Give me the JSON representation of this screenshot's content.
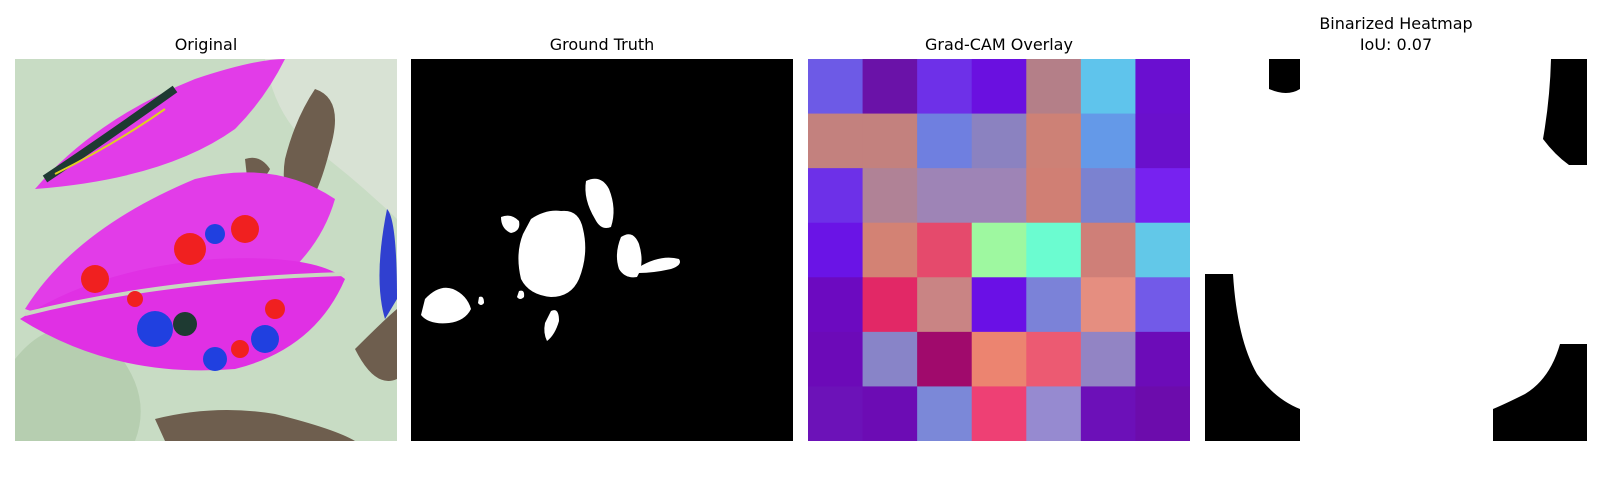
{
  "panels": [
    {
      "title": "Original"
    },
    {
      "title": "Ground Truth"
    },
    {
      "title": "Grad-CAM Overlay"
    },
    {
      "title": "Binarized Heatmap",
      "subtitle": "IoU: 0.07"
    }
  ],
  "gradcam": {
    "grid": [
      [
        "#6d5ae6",
        "#6a12a8",
        "#6e30e8",
        "#6a10e0",
        "#b47f88",
        "#5fc4ec",
        "#6a0fd0"
      ],
      [
        "#c3817e",
        "#c3817e",
        "#6f7fe0",
        "#8b82c0",
        "#cd8176",
        "#6499e8",
        "#6a10cc"
      ],
      [
        "#6d30e8",
        "#b08296",
        "#9e84b6",
        "#9e84b6",
        "#d07f74",
        "#7b82d0",
        "#7722f0"
      ],
      [
        "#6a14e6",
        "#d38274",
        "#e54a6c",
        "#9ef8a0",
        "#6bfcd0",
        "#cf7f78",
        "#62c8e8"
      ],
      [
        "#6c0ac0",
        "#e22866",
        "#c98484",
        "#6a10e6",
        "#7b82d8",
        "#e58e80",
        "#725ae8"
      ],
      [
        "#6c0ab8",
        "#8884c8",
        "#a00a6c",
        "#ec8470",
        "#ec5a72",
        "#9284c4",
        "#6c0cb8"
      ],
      [
        "#6c12b8",
        "#6c0cb4",
        "#7b88d8",
        "#ee4074",
        "#968ad0",
        "#6c10b8",
        "#6c0cac"
      ]
    ]
  }
}
